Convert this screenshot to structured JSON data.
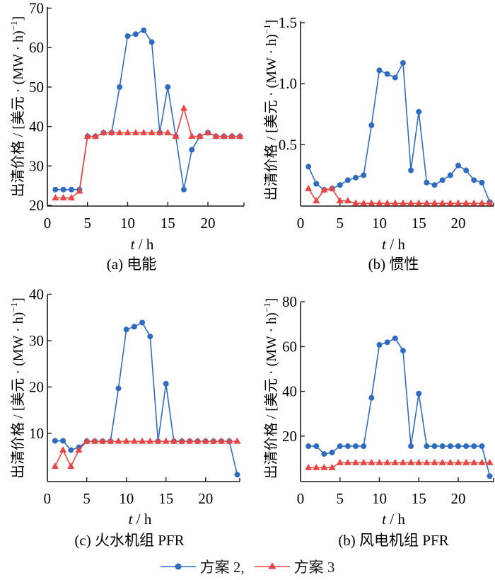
{
  "figure": {
    "ylabel": "出清价格 / [美元 · (MW · h)",
    "ylabel_sup": "−1",
    "ylabel_close": "]",
    "xlabel_italic": "t",
    "xlabel_unit": "/ h"
  },
  "legend": {
    "entries": [
      {
        "label": "方案 2,",
        "color": "#2f6cbf",
        "marker": "circle"
      },
      {
        "label": "方案 3",
        "color": "#e84545",
        "marker": "triangle"
      }
    ]
  },
  "chart_data": [
    {
      "type": "line",
      "title": "(a)  电能",
      "xlabel": "t / h",
      "ylabel": "出清价格 / [美元 · (MW · h)−1]",
      "xlim": [
        0,
        24.3
      ],
      "ylim": [
        20,
        70
      ],
      "xticks": [
        0,
        5,
        10,
        15,
        20
      ],
      "yticks": [
        20,
        30,
        40,
        50,
        60,
        70
      ],
      "ytick_labels": [
        "20",
        "30",
        "40",
        "50",
        "60",
        "70"
      ],
      "x": [
        1,
        2,
        3,
        4,
        5,
        6,
        7,
        8,
        9,
        10,
        11,
        12,
        13,
        14,
        15,
        16,
        17,
        18,
        19,
        20,
        21,
        22,
        23,
        24
      ],
      "series": [
        {
          "name": "方案 2",
          "values": [
            24.0,
            24.0,
            24.0,
            24.0,
            37.5,
            37.5,
            38.4,
            38.4,
            50.0,
            62.9,
            63.4,
            64.4,
            61.4,
            38.4,
            50.0,
            37.5,
            24.0,
            34.1,
            37.5,
            38.4,
            37.5,
            37.5,
            37.5,
            37.5
          ]
        },
        {
          "name": "方案 3",
          "values": [
            21.9,
            21.9,
            21.9,
            23.6,
            37.5,
            37.5,
            38.4,
            38.4,
            38.4,
            38.4,
            38.4,
            38.4,
            38.4,
            38.4,
            38.4,
            37.5,
            44.6,
            37.5,
            37.5,
            38.4,
            37.5,
            37.5,
            37.5,
            37.5
          ]
        }
      ],
      "grid": false,
      "legend": "bottom"
    },
    {
      "type": "line",
      "title": "(b)  惯性",
      "xlabel": "t / h",
      "ylabel": "出清价格 / [美元 · (MW · h)−1]",
      "xlim": [
        0,
        24.3
      ],
      "ylim": [
        0,
        1.5
      ],
      "xticks": [
        0,
        5,
        10,
        15,
        20
      ],
      "yticks": [
        0.5,
        1.0,
        1.5
      ],
      "ytick_labels": [
        "0.5",
        "1.0",
        "1.5"
      ],
      "x": [
        1,
        2,
        3,
        4,
        5,
        6,
        7,
        8,
        9,
        10,
        11,
        12,
        13,
        14,
        15,
        16,
        17,
        18,
        19,
        20,
        21,
        22,
        23,
        24
      ],
      "series": [
        {
          "name": "方案 2",
          "values": [
            0.32,
            0.18,
            0.13,
            0.14,
            0.17,
            0.21,
            0.23,
            0.25,
            0.66,
            1.11,
            1.08,
            1.05,
            1.17,
            0.29,
            0.77,
            0.19,
            0.17,
            0.21,
            0.25,
            0.33,
            0.29,
            0.21,
            0.19,
            0.03
          ]
        },
        {
          "name": "方案 3",
          "values": [
            0.14,
            0.04,
            0.13,
            0.14,
            0.04,
            0.04,
            0.02,
            0.02,
            0.02,
            0.02,
            0.02,
            0.02,
            0.02,
            0.02,
            0.02,
            0.02,
            0.02,
            0.02,
            0.02,
            0.02,
            0.02,
            0.02,
            0.02,
            0.02
          ]
        }
      ],
      "grid": false,
      "legend": "bottom"
    },
    {
      "type": "line",
      "title": "(c)  火水机组 PFR",
      "xlabel": "t / h",
      "ylabel": "出清价格 / [美元 · (MW · h)−1]",
      "xlim": [
        0,
        24.3
      ],
      "ylim": [
        0,
        40
      ],
      "xticks": [
        0,
        5,
        10,
        15,
        20
      ],
      "yticks": [
        10,
        20,
        30,
        40
      ],
      "ytick_labels": [
        "10",
        "20",
        "30",
        "40"
      ],
      "x": [
        1,
        2,
        3,
        4,
        5,
        6,
        7,
        8,
        9,
        10,
        11,
        12,
        13,
        14,
        15,
        16,
        17,
        18,
        19,
        20,
        21,
        22,
        23,
        24
      ],
      "series": [
        {
          "name": "方案 2",
          "values": [
            8.4,
            8.4,
            6.4,
            7.0,
            8.3,
            8.3,
            8.3,
            8.3,
            19.7,
            32.4,
            33.0,
            33.9,
            30.9,
            8.3,
            20.7,
            8.3,
            8.3,
            8.3,
            8.3,
            8.3,
            8.3,
            8.3,
            8.3,
            1.1
          ]
        },
        {
          "name": "方案 3",
          "values": [
            2.9,
            6.4,
            2.9,
            6.4,
            8.3,
            8.3,
            8.3,
            8.3,
            8.3,
            8.3,
            8.3,
            8.3,
            8.3,
            8.3,
            8.3,
            8.3,
            8.3,
            8.3,
            8.3,
            8.3,
            8.3,
            8.3,
            8.3,
            8.3
          ]
        }
      ],
      "grid": false,
      "legend": "bottom"
    },
    {
      "type": "line",
      "title": "(b)  风电机组 PFR",
      "xlabel": "t / h",
      "ylabel": "出清价格 / [美元 · (MW · h)−1]",
      "xlim": [
        0,
        24.3
      ],
      "ylim": [
        0,
        80
      ],
      "xticks": [
        0,
        5,
        10,
        15,
        20
      ],
      "yticks": [
        20,
        40,
        60,
        80
      ],
      "ytick_labels": [
        "20",
        "40",
        "60",
        "80"
      ],
      "x": [
        1,
        2,
        3,
        4,
        5,
        6,
        7,
        8,
        9,
        10,
        11,
        12,
        13,
        14,
        15,
        16,
        17,
        18,
        19,
        20,
        21,
        22,
        23,
        24
      ],
      "series": [
        {
          "name": "方案 2",
          "values": [
            15.5,
            15.5,
            12.0,
            12.7,
            15.5,
            15.5,
            15.5,
            15.5,
            37.1,
            60.8,
            61.9,
            63.7,
            58.2,
            15.5,
            39.0,
            15.5,
            15.5,
            15.5,
            15.5,
            15.5,
            15.5,
            15.5,
            15.5,
            2.1
          ]
        },
        {
          "name": "方案 3",
          "values": [
            5.9,
            5.9,
            5.9,
            5.9,
            8.1,
            8.1,
            8.1,
            8.1,
            8.1,
            8.1,
            8.1,
            8.1,
            8.1,
            8.1,
            8.1,
            8.1,
            8.1,
            8.1,
            8.1,
            8.1,
            8.1,
            8.1,
            8.1,
            8.1
          ]
        }
      ],
      "grid": false,
      "legend": "bottom"
    }
  ]
}
